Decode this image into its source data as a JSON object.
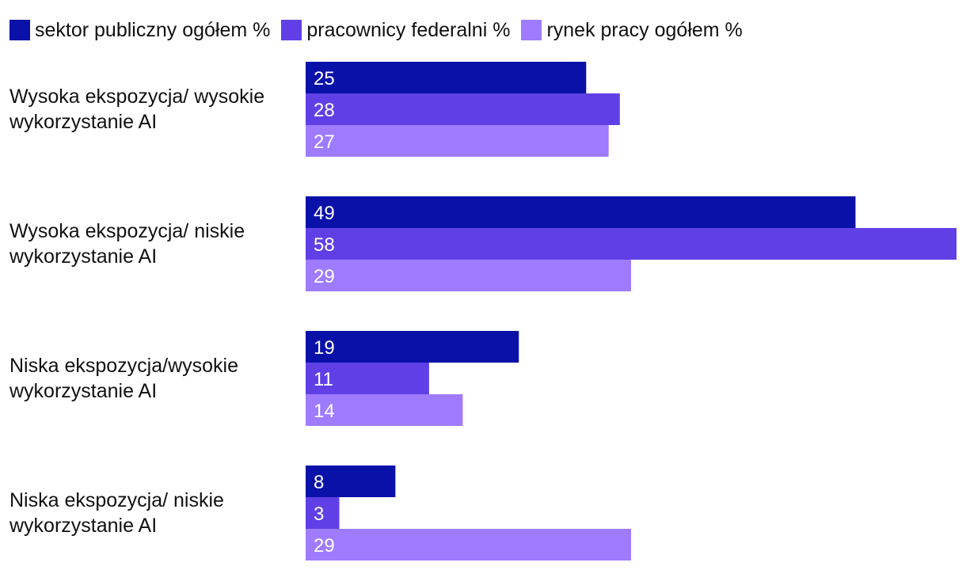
{
  "chart_data": {
    "type": "bar",
    "orientation": "horizontal",
    "categories": [
      [
        "Wysoka ekspozycja/ wysokie",
        "wykorzystanie AI"
      ],
      [
        "Wysoka ekspozycja/ niskie",
        "wykorzystanie AI"
      ],
      [
        "Niska ekspozycja/wysokie",
        "wykorzystanie AI"
      ],
      [
        "Niska ekspozycja/ niskie",
        "wykorzystanie AI"
      ]
    ],
    "series": [
      {
        "name": "sektor publiczny ogółem %",
        "color": "#0a11a8",
        "values": [
          25,
          49,
          19,
          8
        ]
      },
      {
        "name": "pracownicy federalni %",
        "color": "#6040e6",
        "values": [
          28,
          58,
          11,
          3
        ]
      },
      {
        "name": "rynek pracy ogółem %",
        "color": "#9f7bff",
        "values": [
          27,
          29,
          14,
          29
        ]
      }
    ],
    "xlim": [
      0,
      58
    ],
    "grid": false,
    "legend": "top-left"
  }
}
